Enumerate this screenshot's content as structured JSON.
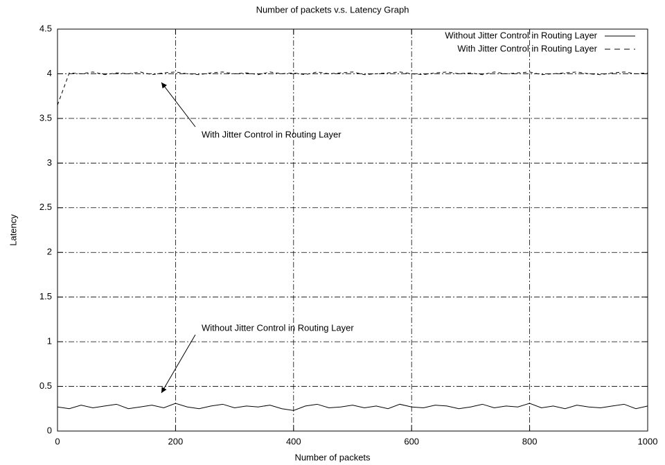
{
  "chart_data": {
    "type": "line",
    "title": "Number of packets v.s. Latency Graph",
    "x_label": "Number of packets",
    "y_label": "Latency",
    "x": [
      0,
      20,
      40,
      60,
      80,
      100,
      120,
      140,
      160,
      180,
      200,
      220,
      240,
      260,
      280,
      300,
      320,
      340,
      360,
      380,
      400,
      420,
      440,
      460,
      480,
      500,
      520,
      540,
      560,
      580,
      600,
      620,
      640,
      660,
      680,
      700,
      720,
      740,
      760,
      780,
      800,
      820,
      840,
      860,
      880,
      900,
      920,
      940,
      960,
      980,
      1000
    ],
    "series": [
      {
        "name": "Without Jitter Control in Routing Layer",
        "color": "#000000",
        "style": "solid",
        "values": [
          0.27,
          0.25,
          0.29,
          0.26,
          0.28,
          0.3,
          0.25,
          0.27,
          0.29,
          0.26,
          0.31,
          0.27,
          0.25,
          0.28,
          0.3,
          0.26,
          0.28,
          0.27,
          0.29,
          0.25,
          0.23,
          0.28,
          0.3,
          0.26,
          0.27,
          0.29,
          0.26,
          0.28,
          0.25,
          0.3,
          0.27,
          0.26,
          0.29,
          0.28,
          0.25,
          0.27,
          0.3,
          0.26,
          0.28,
          0.27,
          0.31,
          0.26,
          0.28,
          0.25,
          0.29,
          0.27,
          0.26,
          0.28,
          0.3,
          0.25,
          0.28
        ]
      },
      {
        "name": "With Jitter Control in Routing Layer",
        "color": "#000000",
        "style": "dashed",
        "values": [
          3.65,
          4.01,
          4.0,
          4.02,
          3.99,
          4.01,
          4.0,
          4.02,
          3.99,
          4.01,
          4.02,
          4.0,
          3.99,
          4.01,
          4.02,
          4.0,
          4.01,
          3.99,
          4.02,
          4.0,
          4.01,
          3.99,
          4.02,
          4.0,
          4.01,
          4.02,
          3.99,
          4.0,
          4.01,
          4.02,
          4.0,
          3.99,
          4.01,
          4.02,
          4.0,
          4.01,
          3.99,
          4.02,
          4.0,
          4.01,
          4.02,
          3.99,
          4.0,
          4.01,
          4.02,
          4.0,
          3.99,
          4.01,
          4.02,
          4.0,
          4.01
        ]
      }
    ],
    "annotations": [
      "With Jitter Control in Routing Layer",
      "Without Jitter Control in Routing Layer"
    ],
    "xlim": [
      0,
      1000
    ],
    "xticks": [
      0,
      200,
      400,
      600,
      800,
      1000
    ],
    "ylim": [
      0,
      4.5
    ],
    "yticks": [
      0,
      0.5,
      1,
      1.5,
      2,
      2.5,
      3,
      3.5,
      4,
      4.5
    ],
    "grid": true,
    "legend": "top-right"
  }
}
